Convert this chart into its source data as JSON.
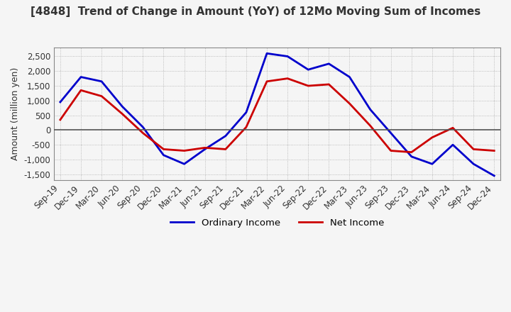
{
  "title": "[4848]  Trend of Change in Amount (YoY) of 12Mo Moving Sum of Incomes",
  "ylabel": "Amount (million yen)",
  "ylim": [
    -1700,
    2800
  ],
  "yticks": [
    -1500,
    -1000,
    -500,
    0,
    500,
    1000,
    1500,
    2000,
    2500
  ],
  "x_labels": [
    "Sep-19",
    "Dec-19",
    "Mar-20",
    "Jun-20",
    "Sep-20",
    "Dec-20",
    "Mar-21",
    "Jun-21",
    "Sep-21",
    "Dec-21",
    "Mar-22",
    "Jun-22",
    "Sep-22",
    "Dec-22",
    "Mar-23",
    "Jun-23",
    "Sep-23",
    "Dec-23",
    "Mar-24",
    "Jun-24",
    "Sep-24",
    "Dec-24"
  ],
  "ordinary_income": [
    950,
    1800,
    1650,
    800,
    100,
    -850,
    -1150,
    -650,
    -200,
    600,
    2600,
    2500,
    2050,
    2250,
    1800,
    700,
    -100,
    -900,
    -1150,
    -500,
    -1150,
    -1550
  ],
  "net_income": [
    350,
    1350,
    1150,
    550,
    -100,
    -650,
    -700,
    -600,
    -650,
    100,
    1650,
    1750,
    1500,
    1550,
    900,
    150,
    -700,
    -750,
    -250,
    75,
    -650,
    -700
  ],
  "ordinary_color": "#0000cc",
  "net_color": "#cc0000",
  "background_color": "#f5f5f5",
  "grid_color": "#999999",
  "zero_line_color": "#555555",
  "title_color": "#333333",
  "border_color": "#888888"
}
